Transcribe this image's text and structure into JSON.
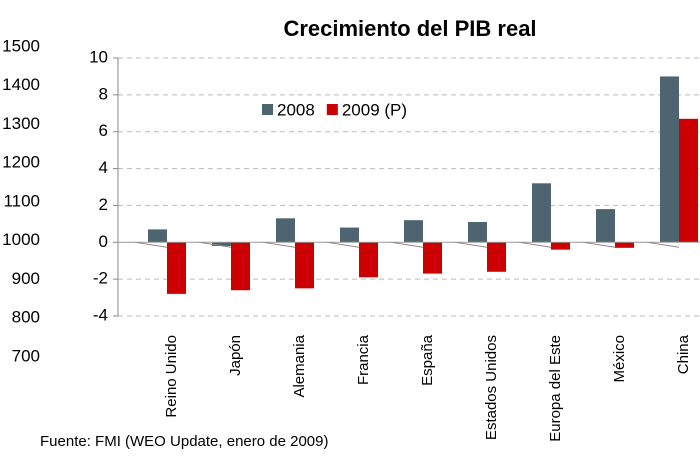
{
  "chart_data": {
    "type": "bar",
    "title": "Crecimiento del PIB real",
    "categories": [
      "Reino Unido",
      "Japón",
      "Alemania",
      "Francia",
      "España",
      "Estados Unidos",
      "Europa del Este",
      "México",
      "China"
    ],
    "series": [
      {
        "name": "2008",
        "color": "#4e6470",
        "values": [
          0.7,
          -0.2,
          1.3,
          0.8,
          1.2,
          1.1,
          3.2,
          1.8,
          9.0
        ]
      },
      {
        "name": "2009 (P)",
        "color": "#cc0000",
        "values": [
          -2.8,
          -2.6,
          -2.5,
          -1.9,
          -1.7,
          -1.6,
          -0.4,
          -0.3,
          6.7
        ]
      }
    ],
    "ylim": [
      -4,
      10
    ],
    "yticks": [
      -4,
      -2,
      0,
      2,
      4,
      6,
      8,
      10
    ],
    "y2lim": [
      700,
      1500
    ],
    "y2ticks": [
      700,
      800,
      900,
      1000,
      1100,
      1200,
      1300,
      1400,
      1500
    ],
    "grid": true,
    "footnote": "Fuente: FMI (WEO Update, enero de 2009)"
  }
}
